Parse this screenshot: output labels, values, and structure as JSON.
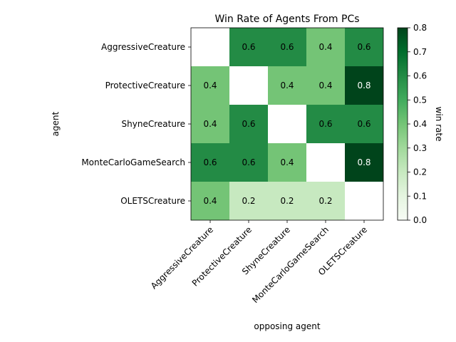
{
  "chart_data": {
    "type": "heatmap",
    "title": "Win Rate of Agents From PCs",
    "xlabel": "opposing agent",
    "ylabel": "agent",
    "rows": [
      "AggressiveCreature",
      "ProtectiveCreature",
      "ShyneCreature",
      "MonteCarloGameSearch",
      "OLETSCreature"
    ],
    "columns": [
      "AggressiveCreature",
      "ProtectiveCreature",
      "ShyneCreature",
      "MonteCarloGameSearch",
      "OLETSCreature"
    ],
    "values": [
      [
        null,
        0.6,
        0.6,
        0.4,
        0.6
      ],
      [
        0.4,
        null,
        0.4,
        0.4,
        0.8
      ],
      [
        0.4,
        0.6,
        null,
        0.6,
        0.6
      ],
      [
        0.6,
        0.6,
        0.4,
        null,
        0.8
      ],
      [
        0.4,
        0.2,
        0.2,
        0.2,
        null
      ]
    ],
    "colorbar": {
      "label": "win rate",
      "range": [
        0.0,
        0.8
      ],
      "ticks": [
        "0.0",
        "0.1",
        "0.2",
        "0.3",
        "0.4",
        "0.5",
        "0.6",
        "0.7",
        "0.8"
      ],
      "colormap": "Greens"
    },
    "cell_labels": {
      "0.2": "0.2",
      "0.4": "0.4",
      "0.6": "0.6",
      "0.8": "0.8"
    }
  }
}
